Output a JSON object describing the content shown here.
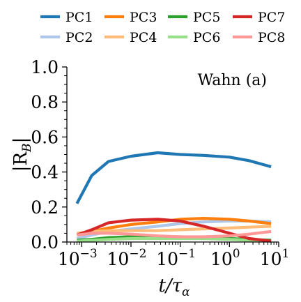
{
  "chart_data": {
    "type": "line",
    "annotation": "Wahn (a)",
    "xlabel_base": "t/τ",
    "xlabel_sub": "α",
    "ylabel_base": "|R",
    "ylabel_sub": "B",
    "ylabel_close": "|",
    "xscale": "log",
    "xlim": [
      0.0005,
      10
    ],
    "ylim": [
      0,
      1.0
    ],
    "yticks": [
      {
        "value": 0.0,
        "label": "0.0"
      },
      {
        "value": 0.2,
        "label": "0.2"
      },
      {
        "value": 0.4,
        "label": "0.4"
      },
      {
        "value": 0.6,
        "label": "0.6"
      },
      {
        "value": 0.8,
        "label": "0.8"
      },
      {
        "value": 1.0,
        "label": "1.0"
      }
    ],
    "xticks": [
      {
        "value": 0.001,
        "base": "10",
        "exp": "−3"
      },
      {
        "value": 0.01,
        "base": "10",
        "exp": "−2"
      },
      {
        "value": 0.1,
        "base": "10",
        "exp": "−1"
      },
      {
        "value": 1,
        "base": "10",
        "exp": "0"
      },
      {
        "value": 10,
        "base": "10",
        "exp": "1"
      }
    ],
    "grid": false,
    "legend_position": "top",
    "x": [
      0.0008,
      0.0016,
      0.0035,
      0.01,
      0.035,
      0.1,
      0.3,
      1.0,
      2.5,
      7.0
    ],
    "series": [
      {
        "name": "PC1",
        "color": "#1f77b4",
        "values": [
          0.22,
          0.38,
          0.46,
          0.49,
          0.51,
          0.5,
          0.495,
          0.485,
          0.465,
          0.43
        ]
      },
      {
        "name": "PC2",
        "color": "#aec7e8",
        "values": [
          0.02,
          0.04,
          0.06,
          0.075,
          0.09,
          0.105,
          0.115,
          0.12,
          0.12,
          0.115
        ]
      },
      {
        "name": "PC3",
        "color": "#ff7f0e",
        "values": [
          0.04,
          0.06,
          0.08,
          0.1,
          0.115,
          0.13,
          0.135,
          0.13,
          0.12,
          0.105
        ]
      },
      {
        "name": "PC4",
        "color": "#ffbb78",
        "values": [
          0.05,
          0.06,
          0.065,
          0.065,
          0.065,
          0.07,
          0.075,
          0.08,
          0.085,
          0.09
        ]
      },
      {
        "name": "PC5",
        "color": "#2ca02c",
        "values": [
          0.01,
          0.015,
          0.025,
          0.03,
          0.03,
          0.03,
          0.025,
          0.02,
          0.015,
          0.01
        ]
      },
      {
        "name": "PC6",
        "color": "#98df8a",
        "values": [
          0.005,
          0.01,
          0.015,
          0.02,
          0.02,
          0.02,
          0.02,
          0.015,
          0.01,
          0.005
        ]
      },
      {
        "name": "PC7",
        "color": "#d62728",
        "values": [
          0.04,
          0.07,
          0.11,
          0.125,
          0.13,
          0.12,
          0.09,
          0.05,
          0.02,
          0.005
        ]
      },
      {
        "name": "PC8",
        "color": "#ff9896",
        "values": [
          0.04,
          0.05,
          0.05,
          0.045,
          0.035,
          0.03,
          0.03,
          0.035,
          0.045,
          0.06
        ]
      }
    ]
  }
}
